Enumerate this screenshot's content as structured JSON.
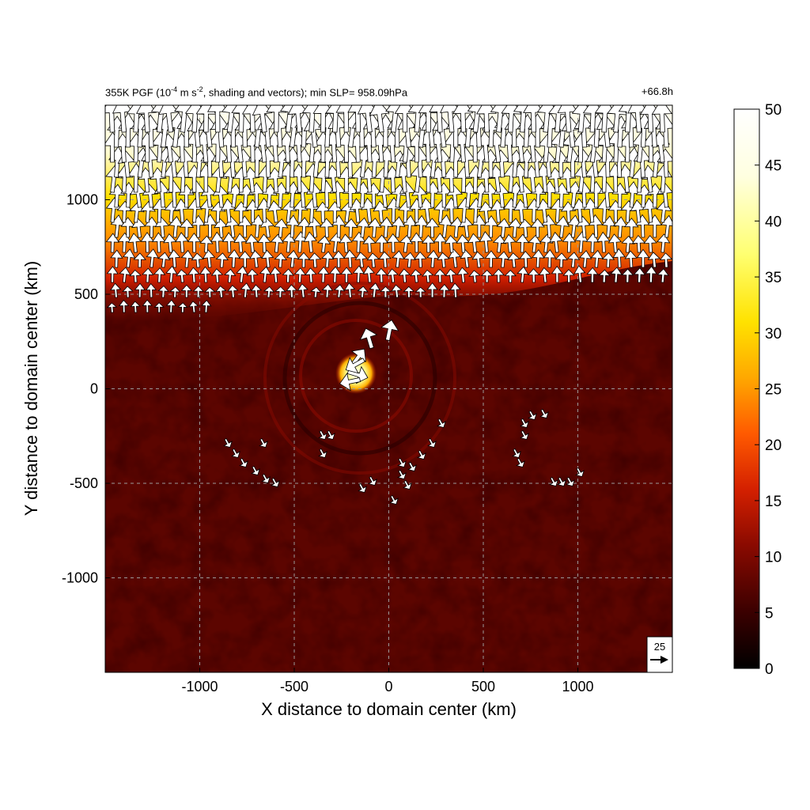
{
  "title": {
    "prefix": "355K PGF (10",
    "exp1": "-4",
    "mid": " m s",
    "exp2": "-2",
    "suffix": ", shading and vectors); min SLP= 958.09hPa",
    "time": "+66.8h"
  },
  "chart_data": {
    "type": "heatmap",
    "xlabel": "X distance to domain center (km)",
    "ylabel": "Y distance to domain center (km)",
    "xlim": [
      -1500,
      1500
    ],
    "ylim": [
      -1500,
      1500
    ],
    "xticks": [
      -1000,
      -500,
      0,
      500,
      1000
    ],
    "yticks": [
      -1000,
      -500,
      0,
      500,
      1000
    ],
    "grid": true,
    "colorbar": {
      "range": [
        0,
        50
      ],
      "ticks": [
        0,
        5,
        10,
        15,
        20,
        25,
        30,
        35,
        40,
        45,
        50
      ],
      "colormap": [
        "#000000",
        "#3a0000",
        "#8a0a00",
        "#d42000",
        "#ff5a00",
        "#ffa800",
        "#ffe200",
        "#ffff70",
        "#ffffe0",
        "#ffffff"
      ]
    },
    "field_regions": [
      {
        "region": "north (y > ~700 km)",
        "approx_value_range": [
          15,
          50
        ]
      },
      {
        "region": "center (~-150, 30) km",
        "approx_value_range": [
          30,
          50
        ]
      },
      {
        "region": "south of ~400 km",
        "approx_value_range": [
          0,
          10
        ]
      }
    ],
    "vectors": {
      "reference": {
        "magnitude": 25,
        "label": "25"
      },
      "groups": [
        {
          "region": "north",
          "direction": "north",
          "x_range": [
            -1450,
            1450
          ],
          "y_range": [
            300,
            1450
          ]
        },
        {
          "region": "center",
          "direction": "mixed",
          "center": [
            -170,
            70
          ]
        },
        {
          "region": "south",
          "direction": "southeast",
          "x_range": [
            -900,
            1050
          ],
          "y_range": [
            -600,
            -100
          ]
        }
      ]
    },
    "minimum_slp_hpa": 958.09,
    "forecast_hour": "+66.8h"
  }
}
